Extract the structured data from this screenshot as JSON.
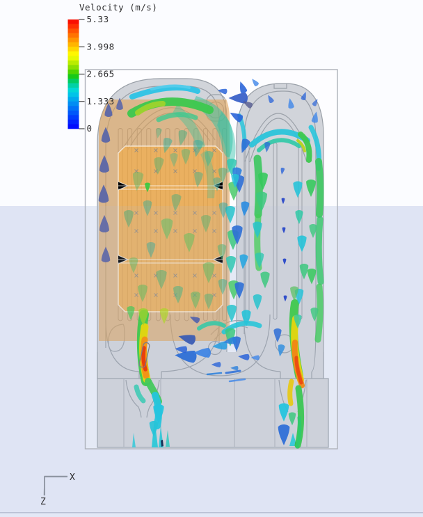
{
  "legend": {
    "title": "Velocity (m/s)",
    "ticks": [
      "5.33",
      "3.998",
      "2.665",
      "1.333",
      "0"
    ],
    "max_value": 5.33,
    "colorbar_colors": [
      "#fa0f00",
      "#ff3000",
      "#ff5200",
      "#ff7300",
      "#ff9400",
      "#ffb500",
      "#ffd600",
      "#fff700",
      "#e8f900",
      "#b9ec00",
      "#8adf00",
      "#50d400",
      "#17ca17",
      "#00cc62",
      "#00d1a6",
      "#00d7d7",
      "#00c3e8",
      "#00a8ee",
      "#008df3",
      "#0072f7",
      "#0057fa",
      "#003cfd",
      "#0022ff",
      "#000bff"
    ]
  },
  "axis_triad": {
    "x_label": "X",
    "z_label": "Z"
  },
  "colors": {
    "background_top": "#fbfcff",
    "background_bottom": "#dfe4f4",
    "housing_fill": "#d1d4da",
    "housing_outline": "#9aa0a8",
    "domain_border": "#adb1ba",
    "module_band": "#e0a052",
    "module_block": "#faaa32"
  }
}
